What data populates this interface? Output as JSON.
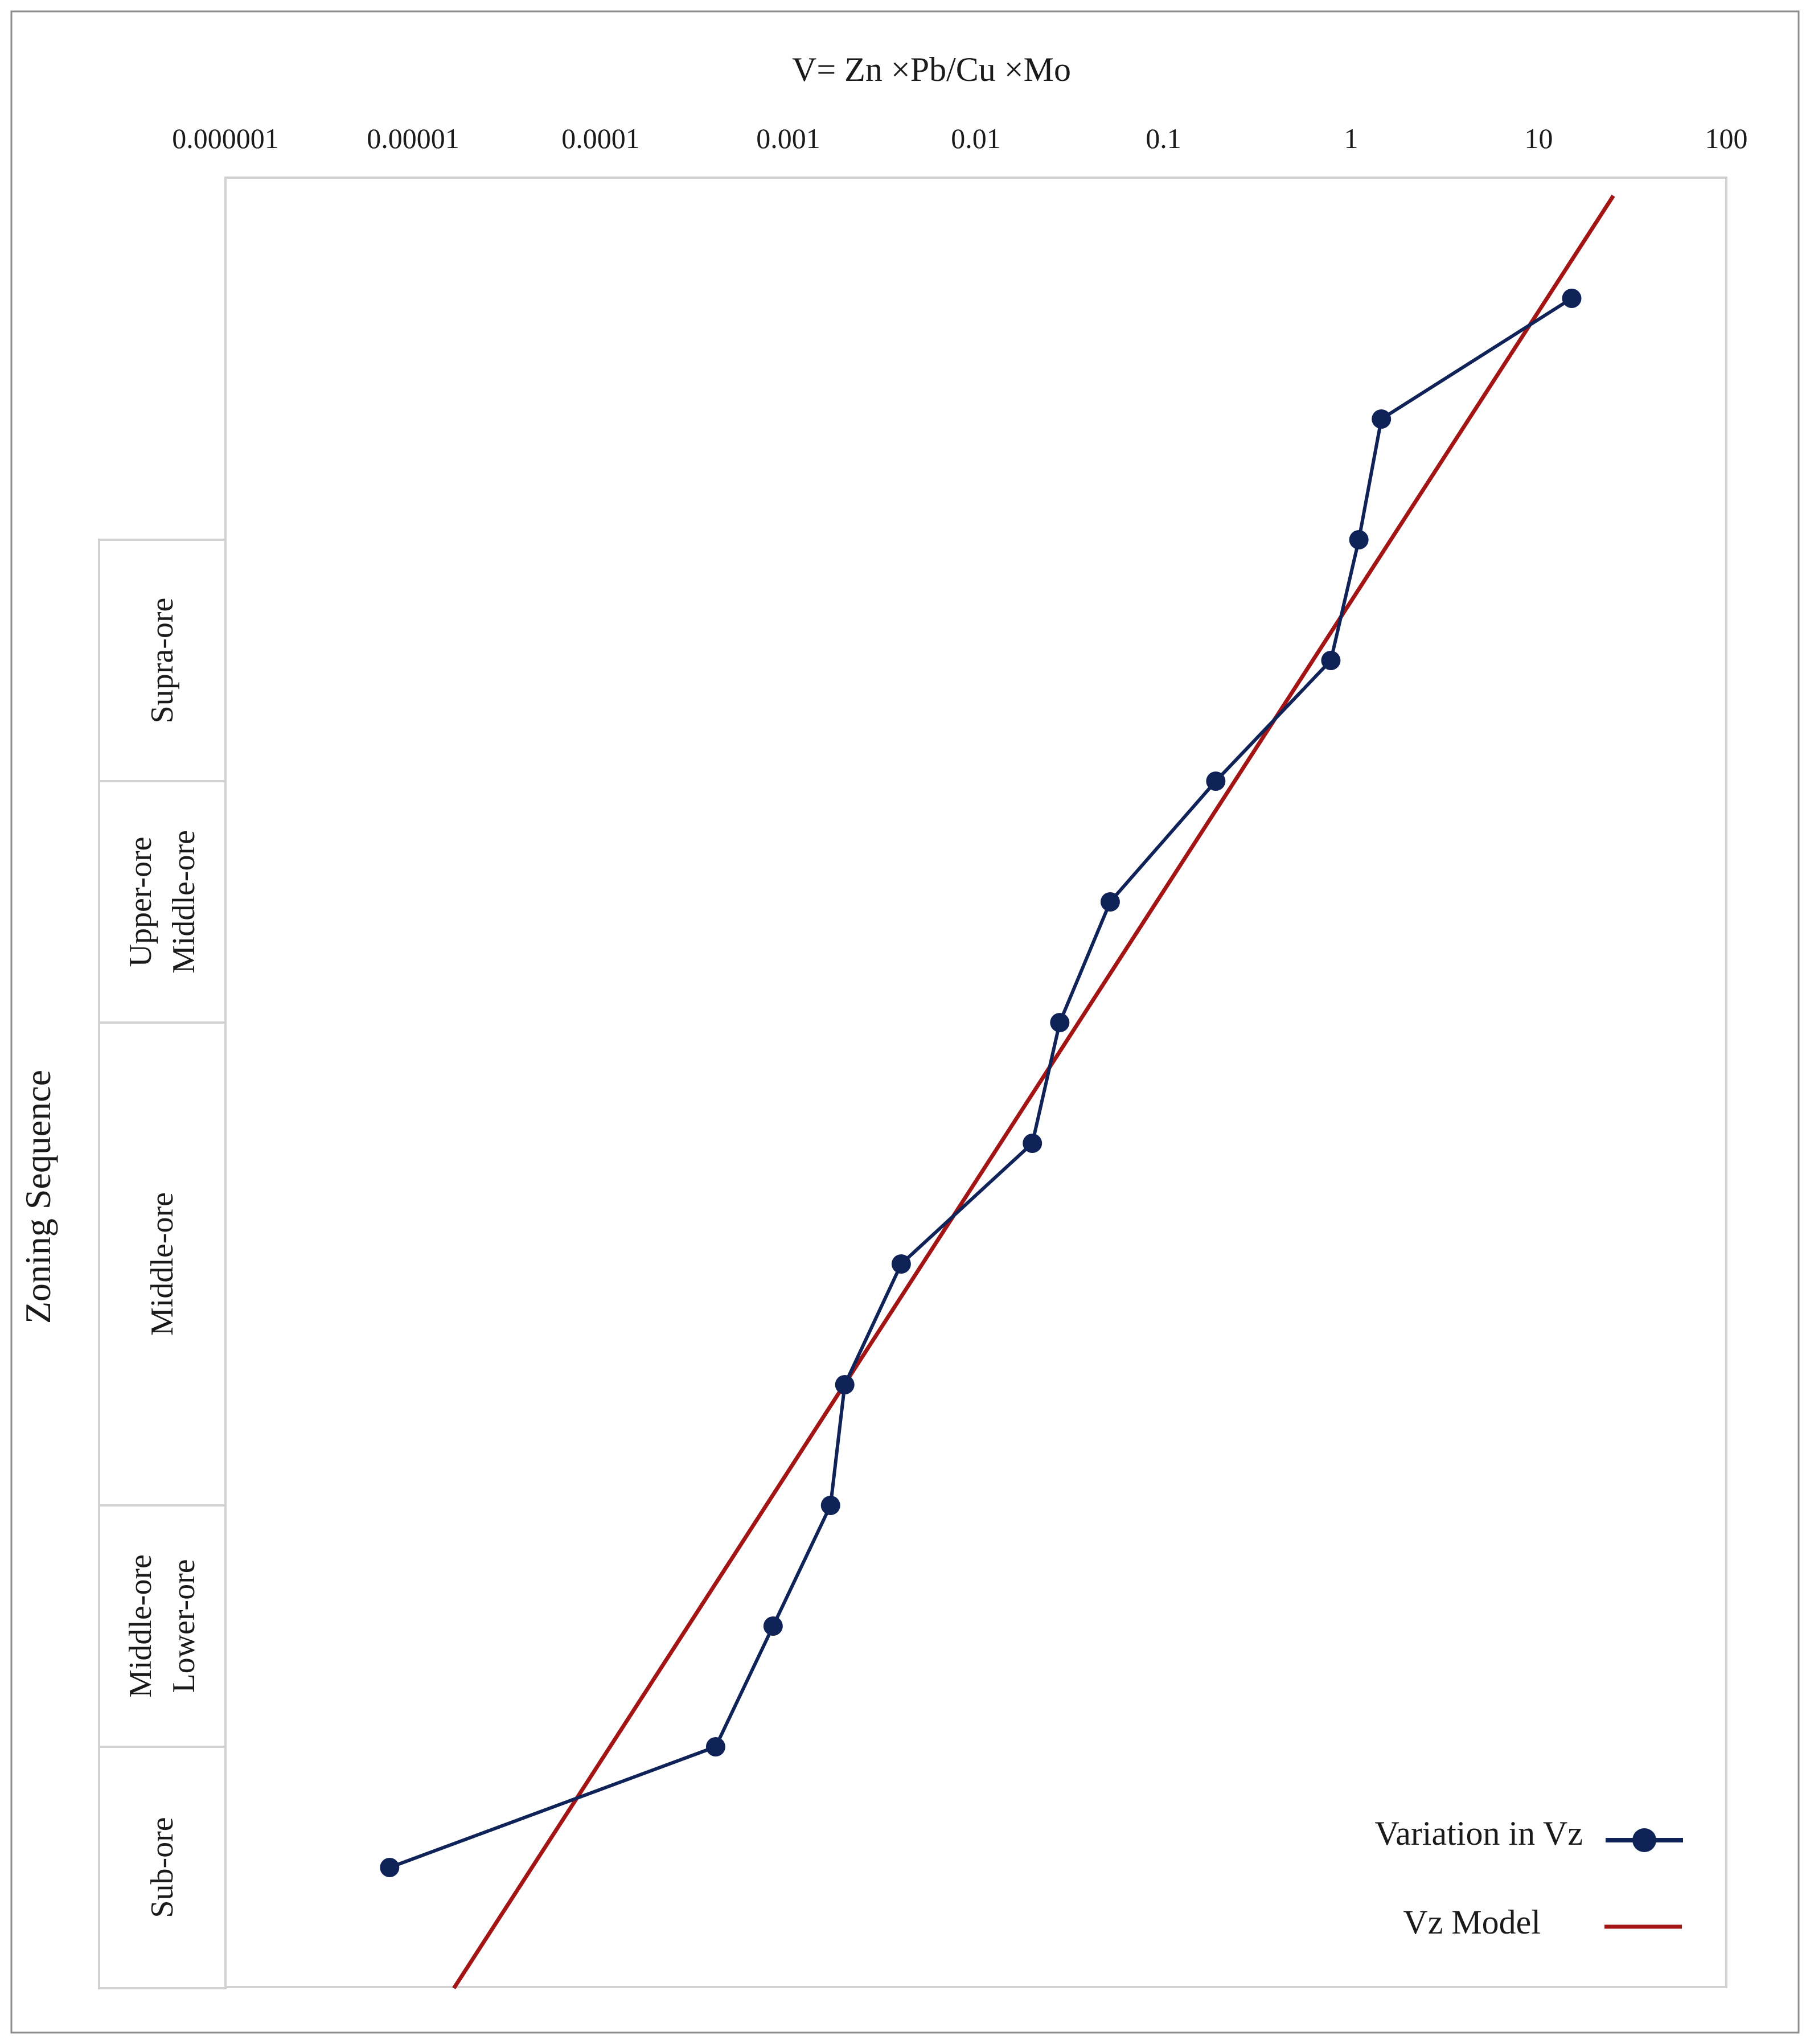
{
  "chart_data": {
    "type": "line",
    "title": "V= Zn ×Pb/Cu ×Mo",
    "xscale": "log",
    "xlim": [
      1e-06,
      100
    ],
    "x_tick_labels": [
      "0.000001",
      "0.00001",
      "0.0001",
      "0.001",
      "0.01",
      "0.1",
      "1",
      "10",
      "100"
    ],
    "ylabel": "Zoning Sequence",
    "y_steps": 14,
    "zones": [
      {
        "name": "supra-ore",
        "lines": [
          "Supra-ore"
        ],
        "from": 3,
        "to": 5
      },
      {
        "name": "upper-middle",
        "lines": [
          "Upper-ore",
          "Middle-ore"
        ],
        "from": 5,
        "to": 7
      },
      {
        "name": "middle-ore",
        "lines": [
          "Middle-ore"
        ],
        "from": 7,
        "to": 11
      },
      {
        "name": "middle-lower",
        "lines": [
          "Middle-ore",
          "Lower-ore"
        ],
        "from": 11,
        "to": 13
      },
      {
        "name": "sub-ore",
        "lines": [
          "Sub-ore"
        ],
        "from": 13,
        "to": 15
      }
    ],
    "series": [
      {
        "name": "Variation in Vz",
        "color": "#0f2358",
        "marker": "circle",
        "points": [
          {
            "x": 15,
            "y": 1
          },
          {
            "x": 1.45,
            "y": 2
          },
          {
            "x": 1.1,
            "y": 3
          },
          {
            "x": 0.78,
            "y": 4
          },
          {
            "x": 0.19,
            "y": 5
          },
          {
            "x": 0.052,
            "y": 6
          },
          {
            "x": 0.028,
            "y": 7
          },
          {
            "x": 0.02,
            "y": 8
          },
          {
            "x": 0.004,
            "y": 9
          },
          {
            "x": 0.002,
            "y": 10
          },
          {
            "x": 0.00168,
            "y": 11
          },
          {
            "x": 0.00083,
            "y": 12
          },
          {
            "x": 0.00041,
            "y": 13
          },
          {
            "x": 7.5e-06,
            "y": 14
          }
        ]
      },
      {
        "name": "Vz Model",
        "color": "#a31515",
        "marker": "none",
        "points": [
          {
            "x": 25,
            "y": 0.15
          },
          {
            "x": 1.65e-05,
            "y": 15
          }
        ]
      }
    ],
    "legend_position": "bottom-right",
    "grid": false
  }
}
